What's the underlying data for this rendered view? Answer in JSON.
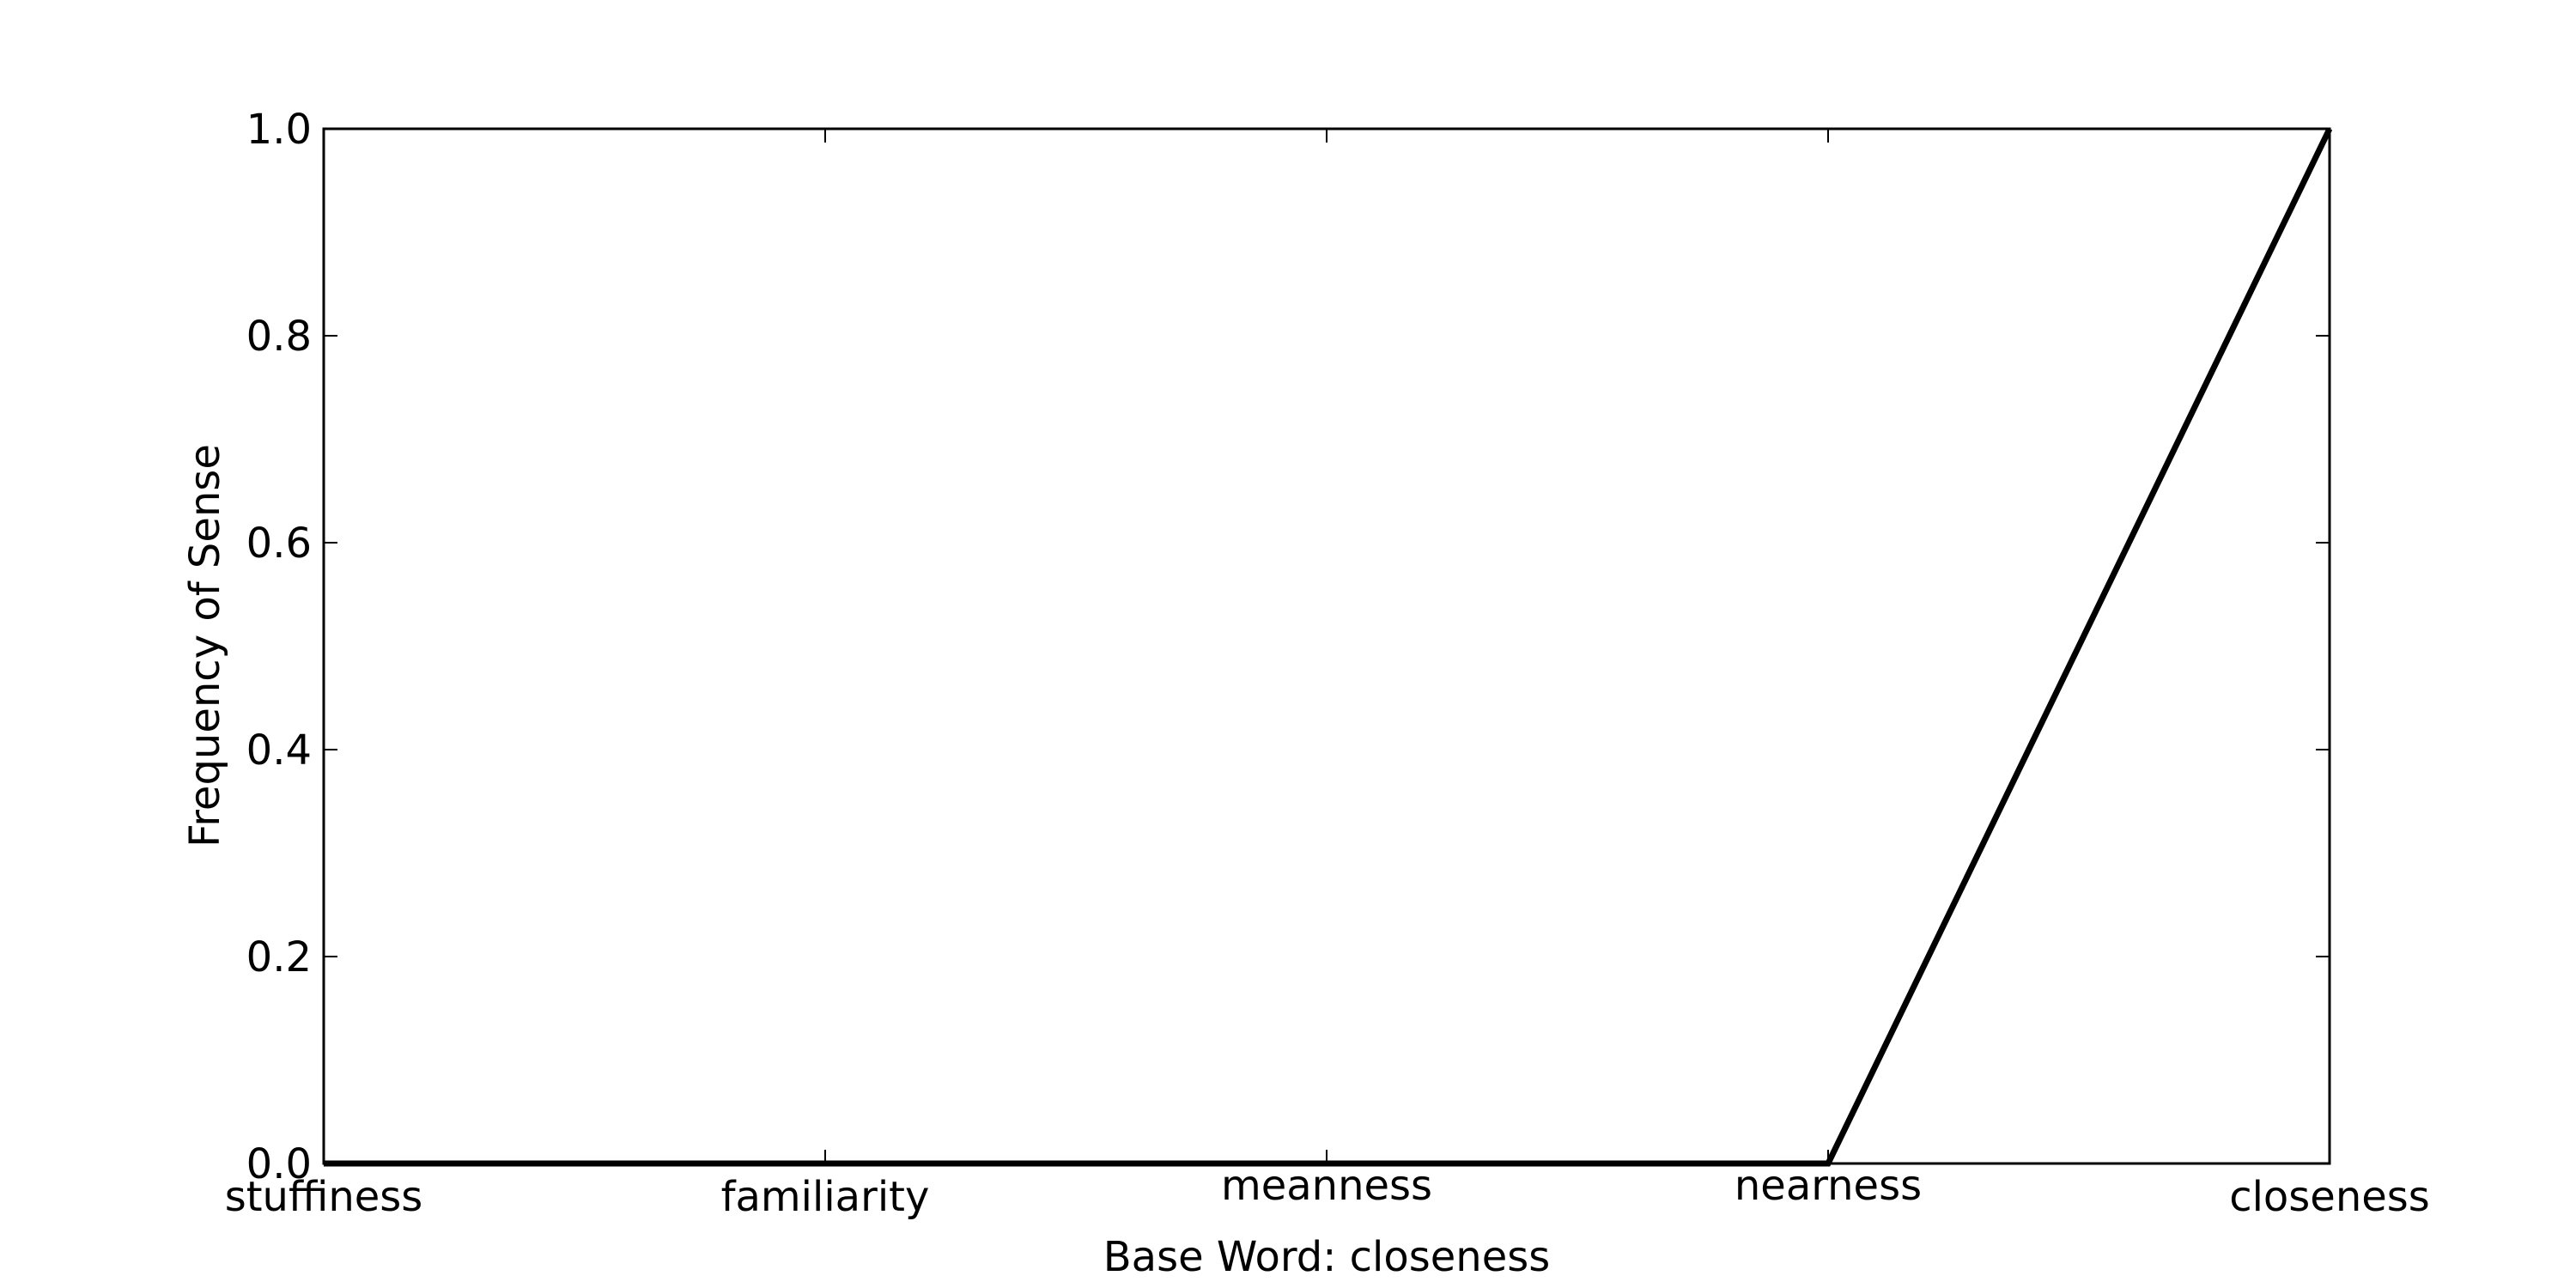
{
  "chart_data": {
    "type": "line",
    "categories": [
      "stuffiness",
      "familiarity",
      "meanness",
      "nearness",
      "closeness"
    ],
    "series": [
      {
        "values": [
          0.0,
          0.0,
          0.0,
          0.0,
          1.0
        ]
      }
    ],
    "title": "",
    "xlabel": "Base Word: closeness",
    "ylabel": "Frequency of Sense",
    "ylim": [
      0.0,
      1.0
    ],
    "yticks": [
      "0.0",
      "0.2",
      "0.4",
      "0.6",
      "0.8",
      "1.0"
    ],
    "grid": false,
    "line_color": "#000000"
  }
}
